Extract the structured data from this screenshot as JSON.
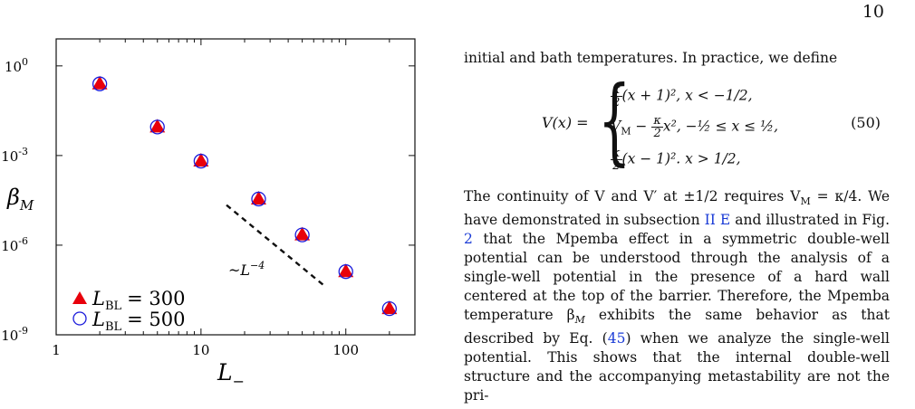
{
  "page": {
    "number": "10"
  },
  "figure": {
    "ylabel": "β",
    "ylabel_sub": "M",
    "xlabel": "L",
    "xlabel_sub": "−",
    "scaling_label": "~L",
    "scaling_exp": "−4",
    "legend": [
      {
        "symbol": "filled-triangle",
        "label": "L",
        "sub": "BL",
        "value": "= 300",
        "color": "#e8000b"
      },
      {
        "symbol": "open-circle",
        "label": "L",
        "sub": "BL",
        "value": "= 500",
        "color": "#1a1adb"
      }
    ],
    "x_ticks": [
      "1",
      "10",
      "100"
    ],
    "y_ticks": [
      "10^0",
      "10^-3",
      "10^-6",
      "10^-9"
    ]
  },
  "chart_data": {
    "type": "scatter",
    "x_scale": "log",
    "y_scale": "log",
    "xlim": [
      1,
      300
    ],
    "ylim": [
      1e-09,
      8
    ],
    "x_ticks": [
      1,
      10,
      100
    ],
    "y_ticks": [
      1,
      0.001,
      1e-06,
      1e-09
    ],
    "series": [
      {
        "name": "L_BL = 300",
        "marker": "filled-triangle",
        "color": "#e8000b",
        "x": [
          2,
          5,
          10,
          25,
          50,
          100,
          200
        ],
        "y": [
          0.25,
          0.009,
          0.00065,
          3.5e-05,
          2.2e-06,
          1.3e-07,
          7.5e-09
        ]
      },
      {
        "name": "L_BL = 500",
        "marker": "open-circle",
        "color": "#1a1adb",
        "x": [
          2,
          5,
          10,
          25,
          50,
          100,
          200
        ],
        "y": [
          0.25,
          0.009,
          0.00065,
          3.5e-05,
          2.2e-06,
          1.3e-07,
          7.5e-09
        ]
      }
    ],
    "guide_line": {
      "label": "~L_-^{-4}",
      "slope": -4
    }
  },
  "text": {
    "intro": "initial and bath temperatures. In practice, we define",
    "eq_lhs": "V(x) =",
    "eq_case1": "(x + 1)², x < −1/2,",
    "eq_case2_a": "V",
    "eq_case2_b": "M",
    "eq_case2_c": "− ",
    "eq_case2_d": "x², −½ ≤ x ≤ ½,",
    "eq_case3": "(x − 1)². x > 1/2,",
    "eq_frac_num": "κ",
    "eq_frac_den": "2",
    "eq_number": "(50)",
    "p2_a": "The continuity of V and V′ at ±1/2 requires V",
    "p2_a_sub": "M",
    "p2_b": " = κ/4. We have demonstrated in subsection ",
    "ref_section": "II E",
    "p2_c": " and illustrated in Fig. ",
    "ref_fig": "2",
    "p2_d": " that the Mpemba effect in a symmetric double-well potential can be understood through the analysis of a single-well potential in the presence of a hard wall centered at the top of the barrier. Therefore, the Mpemba temperature β",
    "p2_d_sub": "M",
    "p2_e": " exhibits the same behavior as that described by Eq. (",
    "ref_eq": "45",
    "p2_f": ") when we analyze the single-well potential. This shows that the internal double-well structure and the accompanying metastability are not the pri-"
  }
}
